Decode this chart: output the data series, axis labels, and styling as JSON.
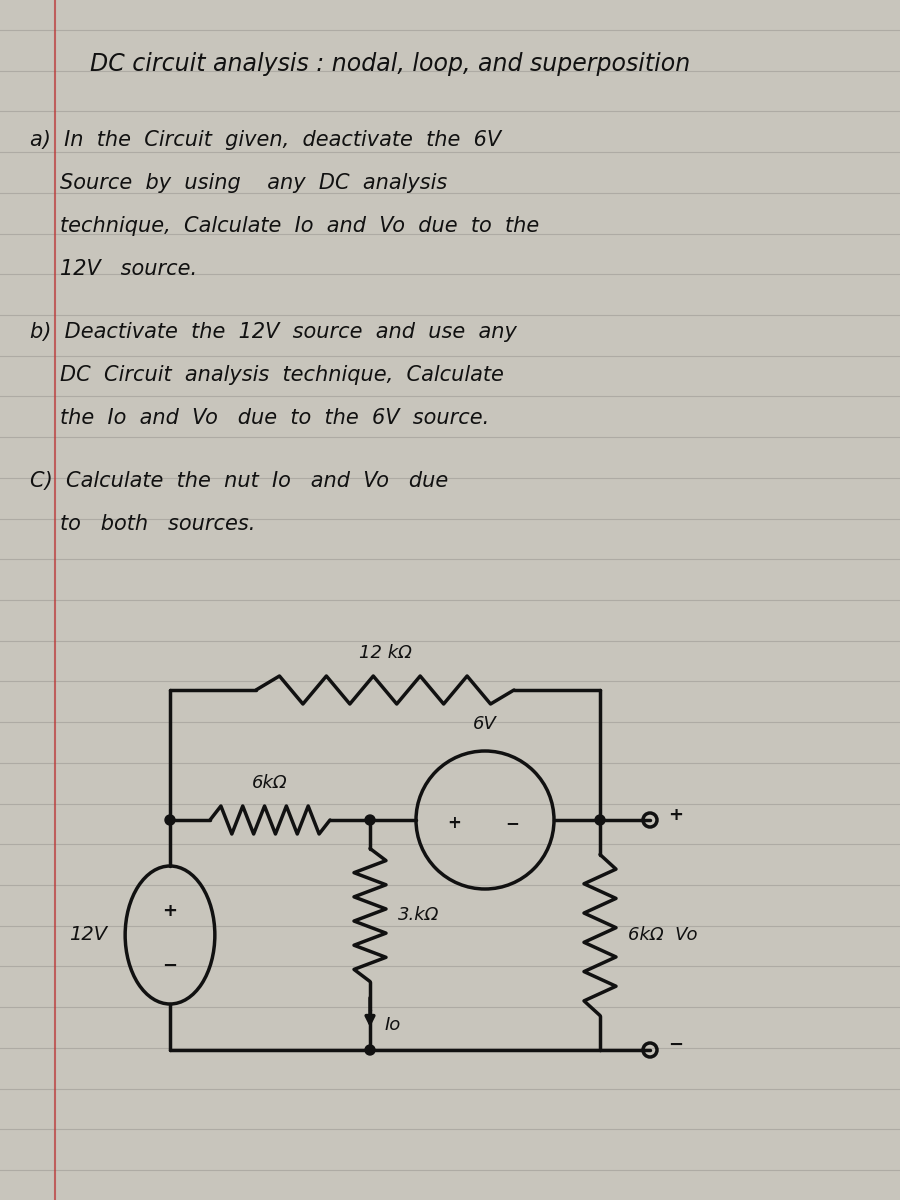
{
  "bg_color": "#c8c5bc",
  "line_color": "#111111",
  "ruled_line_color": "#a8a59e",
  "ruled_line_alpha": 0.8,
  "num_ruled_lines": 28,
  "title": "DC circuit analysis : nodal, loop, and superposition",
  "part_a": [
    "a)  In  the  Circuit  given,  deactivate  the  6V",
    "     Source  by  using     any  DC  analysis",
    "     technique,  Calculate  Io  and  Vo  due  to  the",
    "     12V   source."
  ],
  "part_b": [
    "b)  Deactivate  the  12V  source  and  use  any",
    "     DC  Circuit  analysis  technique,  Calculate",
    "     the  Io  and  Vo   due  to  the  6V  source."
  ],
  "part_c": [
    "C)  Calculate  the  net  Io   and  Vo   due",
    "     to   both   sources."
  ],
  "circuit_label_12kR": "12 kΩ",
  "circuit_label_6kR_h": "6kΩ",
  "circuit_label_6V": "6V",
  "circuit_label_3kR": "3.kΩ",
  "circuit_label_6kR_v": "6kΩ",
  "circuit_label_12V": "12V",
  "circuit_label_Vo": "Vo",
  "circuit_label_Io": "Io",
  "lw": 2.5
}
